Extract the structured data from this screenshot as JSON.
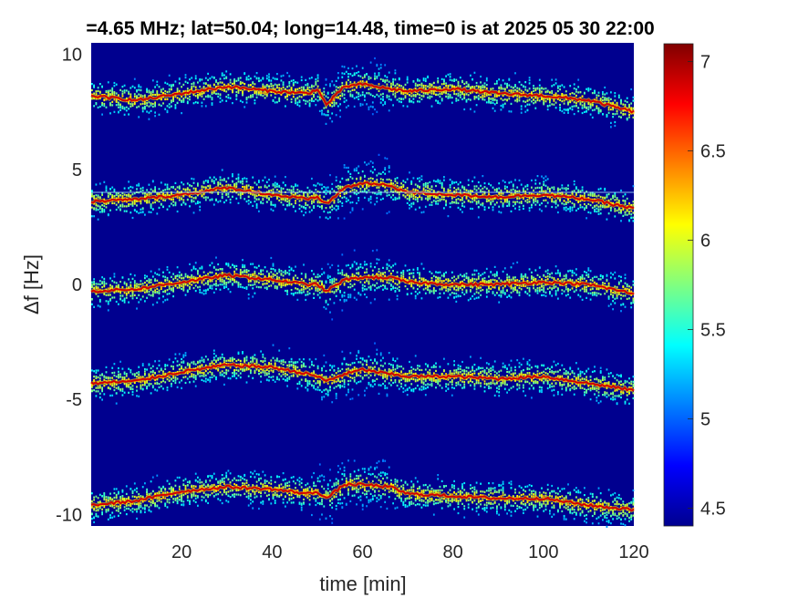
{
  "chart_data": {
    "type": "heatmap",
    "title": "=4.65 MHz;  lat=50.04; long=14.48, time=0 is at 2025 05 30 22:00",
    "xlabel": "time [min]",
    "ylabel": "Δf [Hz]",
    "xlim": [
      0,
      120
    ],
    "ylim": [
      -10.5,
      10.5
    ],
    "x_ticks": [
      20,
      40,
      60,
      80,
      100,
      120
    ],
    "x_tick_labels": [
      "20",
      "40",
      "60",
      "80",
      "100",
      "120"
    ],
    "y_ticks": [
      10,
      5,
      0,
      -5,
      -10
    ],
    "y_tick_labels": [
      "10",
      "5",
      "0",
      "-5",
      "-10"
    ],
    "colorbar": {
      "colormap": "jet",
      "clim": [
        4.4,
        7.1
      ],
      "ticks": [
        7,
        6.5,
        6,
        5.5,
        5,
        4.5
      ],
      "tick_labels": [
        "7",
        "6.5",
        "6",
        "5.5",
        "5",
        "4.5"
      ]
    },
    "background_color": "#00008f",
    "series": [
      {
        "center_hz": 8,
        "time_min": [
          0,
          10,
          20,
          30,
          40,
          48,
          50,
          52,
          56,
          60,
          66,
          70,
          80,
          90,
          100,
          110,
          120
        ],
        "offset_hz": [
          0.2,
          0.0,
          0.3,
          0.6,
          0.4,
          0.3,
          0.5,
          -0.2,
          0.6,
          0.7,
          0.5,
          0.4,
          0.5,
          0.3,
          0.2,
          0.0,
          -0.5
        ]
      },
      {
        "center_hz": 4,
        "time_min": [
          0,
          10,
          20,
          30,
          40,
          48,
          50,
          52,
          56,
          60,
          66,
          70,
          80,
          90,
          100,
          110,
          120
        ],
        "offset_hz": [
          -0.4,
          -0.3,
          -0.1,
          0.2,
          -0.1,
          -0.3,
          -0.2,
          -0.5,
          0.2,
          0.4,
          0.3,
          0.0,
          -0.1,
          -0.2,
          -0.1,
          -0.3,
          -0.7
        ]
      },
      {
        "center_hz": 0,
        "time_min": [
          0,
          10,
          20,
          30,
          40,
          48,
          50,
          52,
          56,
          60,
          66,
          70,
          80,
          90,
          100,
          110,
          120
        ],
        "offset_hz": [
          -0.3,
          -0.2,
          0.1,
          0.4,
          0.2,
          0.0,
          0.0,
          -0.3,
          0.2,
          0.3,
          0.3,
          0.1,
          0.0,
          0.0,
          0.1,
          0.0,
          -0.4
        ]
      },
      {
        "center_hz": -4,
        "time_min": [
          0,
          10,
          20,
          30,
          40,
          48,
          50,
          52,
          56,
          60,
          66,
          70,
          80,
          90,
          100,
          110,
          120
        ],
        "offset_hz": [
          -0.3,
          -0.2,
          0.2,
          0.5,
          0.4,
          0.1,
          0.0,
          -0.2,
          0.1,
          0.3,
          0.1,
          0.0,
          0.0,
          -0.1,
          0.0,
          -0.3,
          -0.6
        ]
      },
      {
        "center_hz": -9,
        "time_min": [
          0,
          10,
          20,
          30,
          40,
          48,
          50,
          52,
          56,
          60,
          66,
          70,
          80,
          90,
          100,
          110,
          120
        ],
        "offset_hz": [
          -0.6,
          -0.4,
          0.0,
          0.2,
          0.1,
          -0.1,
          0.0,
          -0.3,
          0.3,
          0.3,
          0.2,
          -0.1,
          -0.2,
          -0.3,
          -0.3,
          -0.6,
          -0.8
        ]
      }
    ],
    "reference_line_hz": 4,
    "disturbance_time_min": [
      50,
      66
    ]
  }
}
